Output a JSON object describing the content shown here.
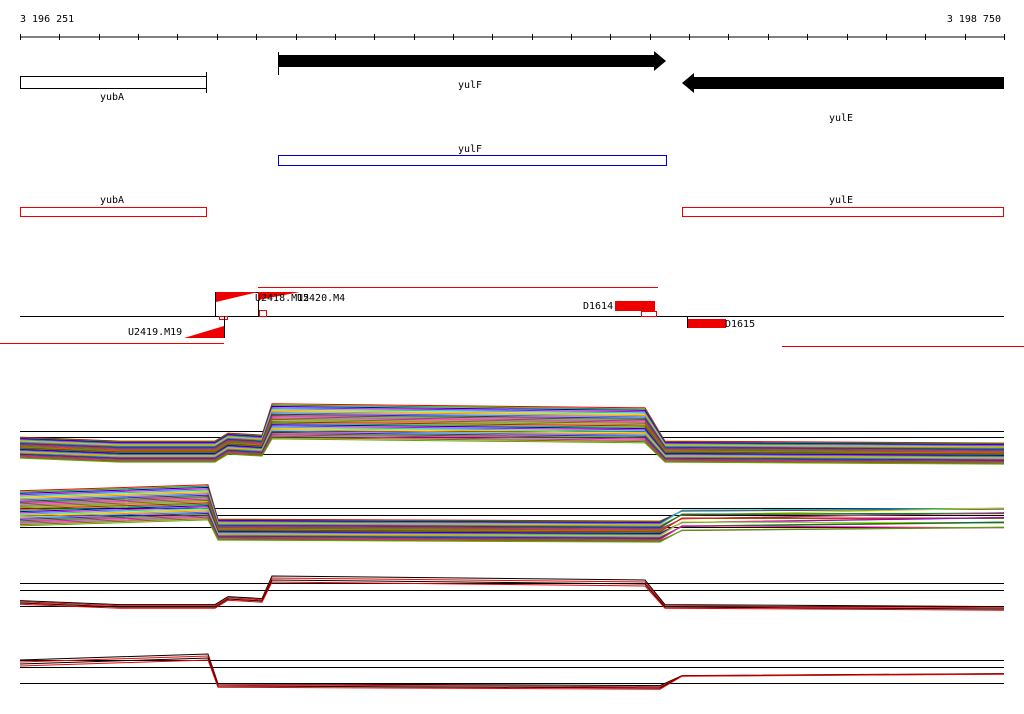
{
  "ruler": {
    "start": "3 196 251",
    "end": "3 198 750"
  },
  "annotation_track": {
    "genes": [
      "yubA",
      "yulF",
      "yulE"
    ]
  },
  "track_2": {
    "genes": [
      "yulF"
    ]
  },
  "track_3": {
    "genes": [
      "yubA",
      "yulE"
    ]
  },
  "probes": {
    "labels": [
      "U2418.M15",
      "U2420.M4",
      "U2419.M19",
      "D1614",
      "D1615"
    ]
  }
}
